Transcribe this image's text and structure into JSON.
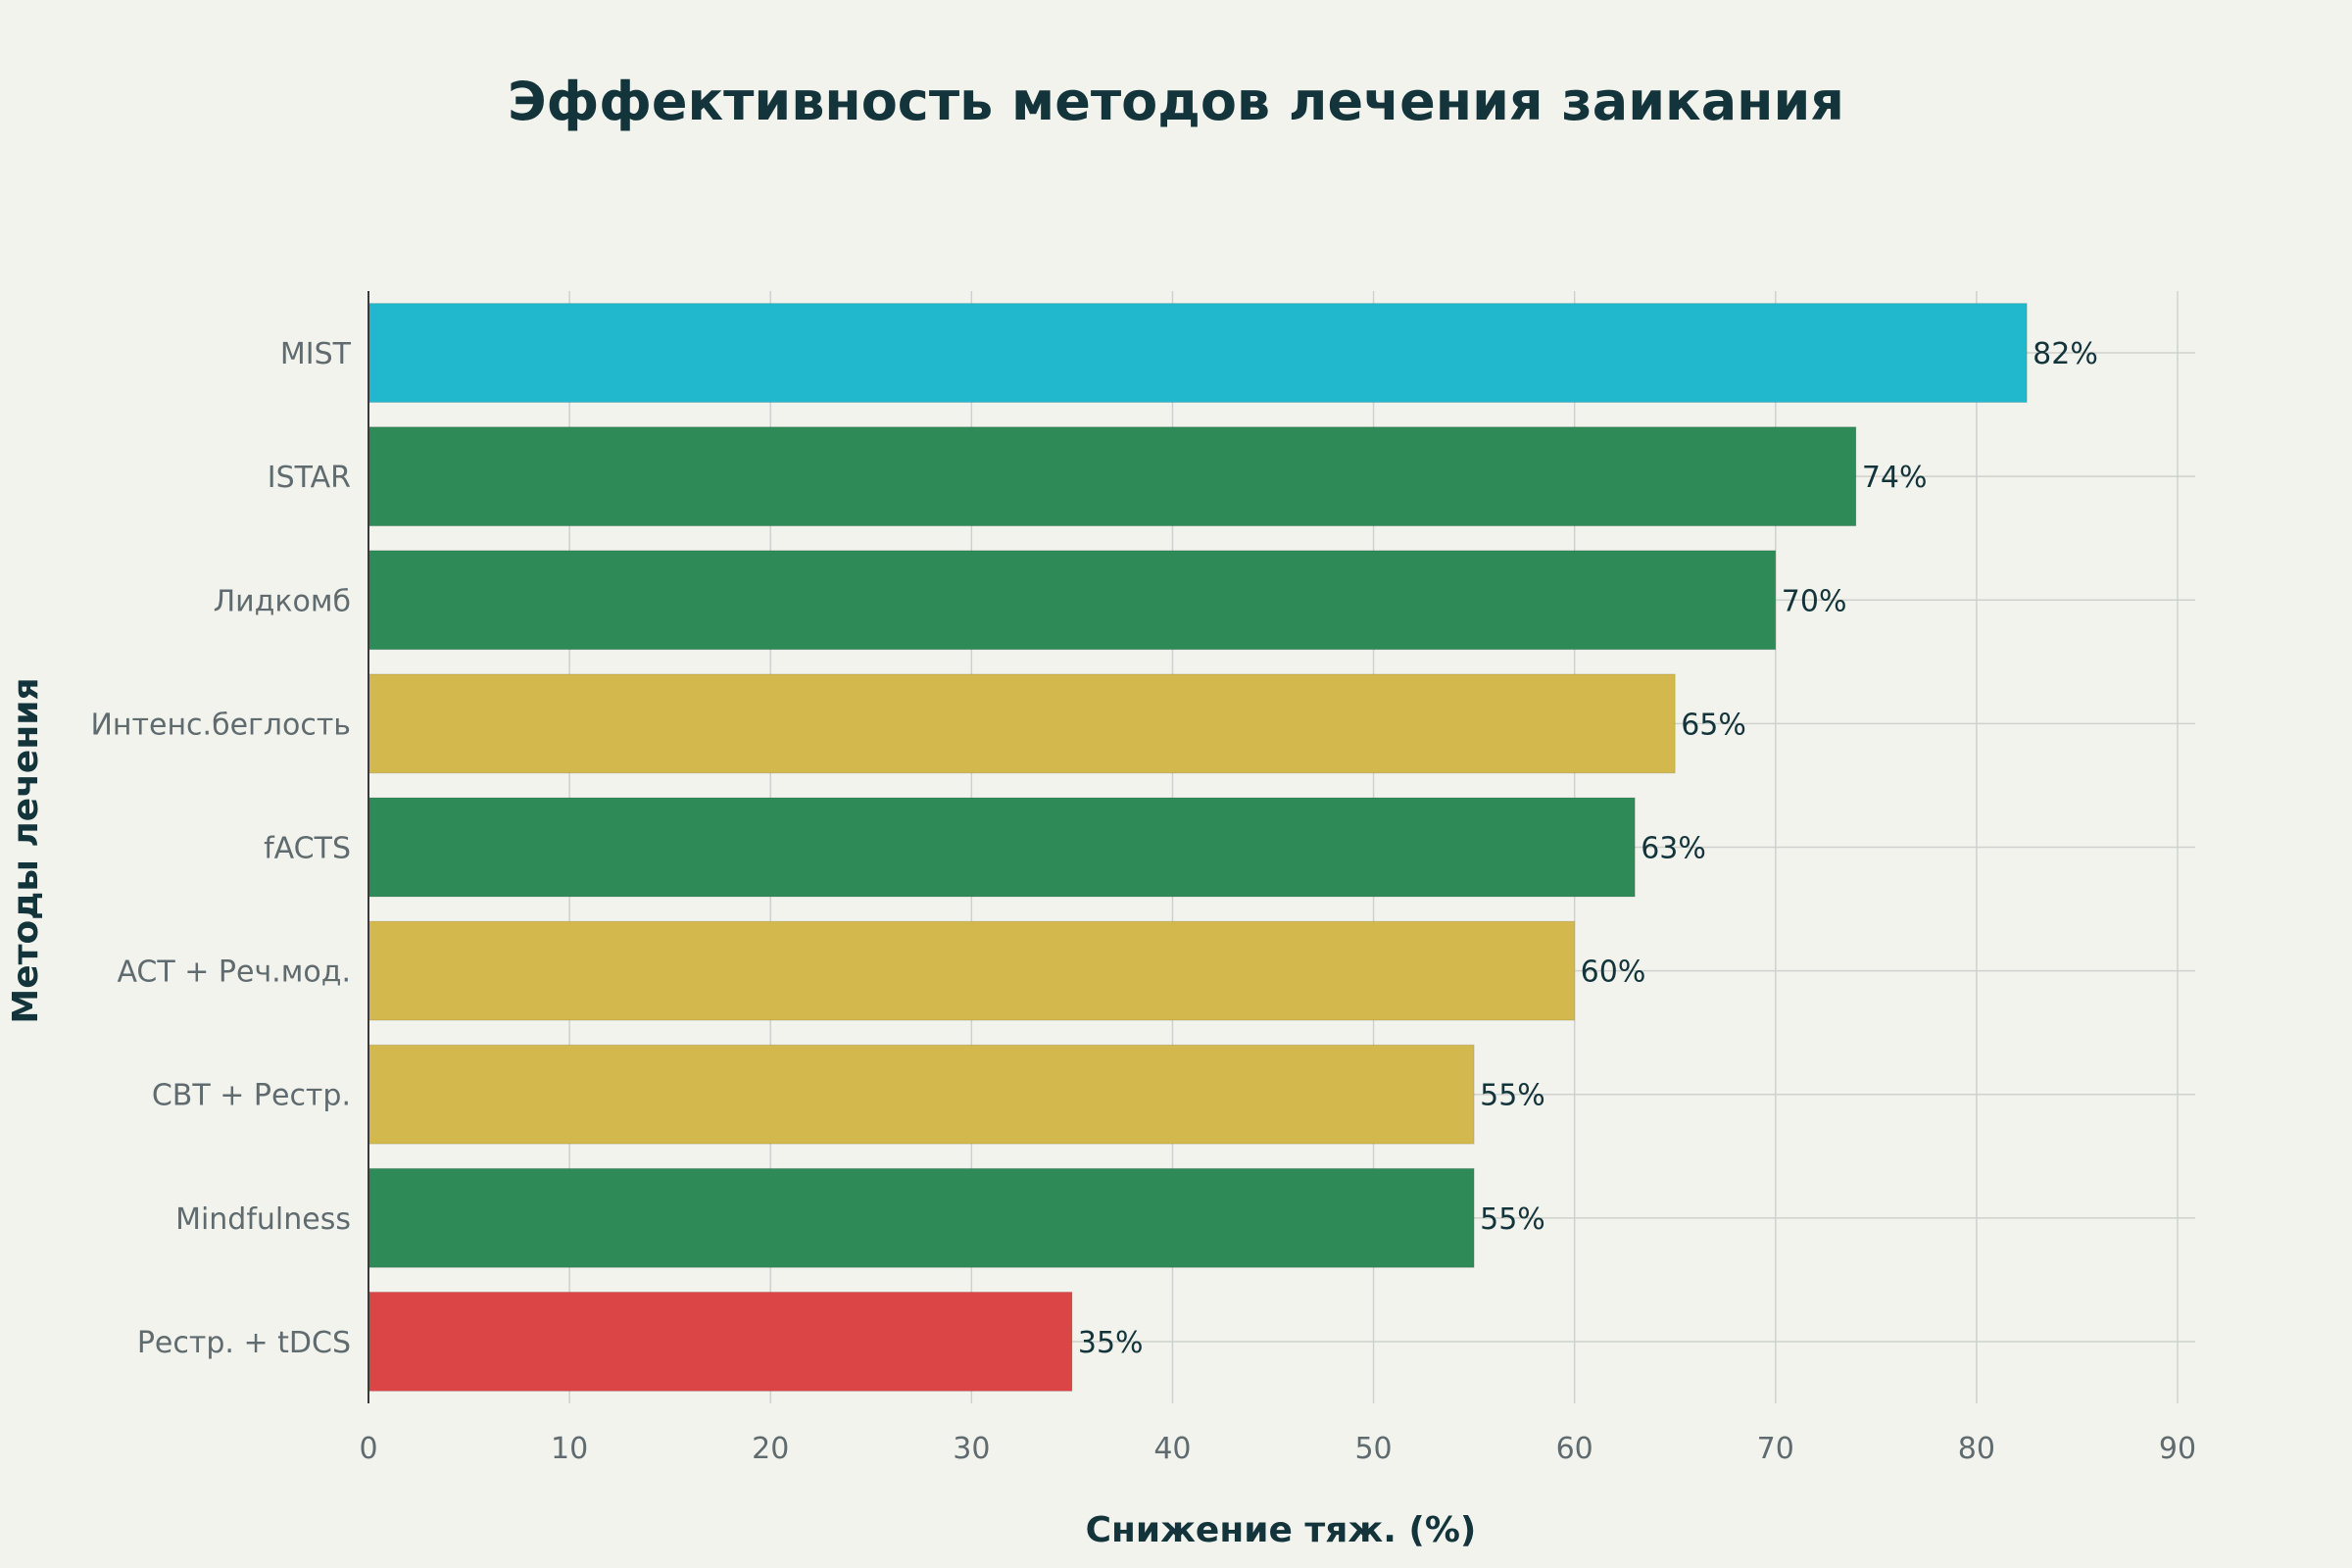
{
  "chart_data": {
    "type": "bar",
    "orientation": "horizontal",
    "title": "Эффективность методов лечения заикания",
    "xlabel": "Снижение тяж. (%)",
    "ylabel": "Методы лечения",
    "xlim": [
      0,
      90
    ],
    "xticks": [
      0,
      10,
      20,
      30,
      40,
      50,
      60,
      70,
      80,
      90
    ],
    "grid": true,
    "categories": [
      "MIST",
      "ISTAR",
      "Лидкомб",
      "Интенс.беглость",
      "fACTS",
      "ACT + Реч.мод.",
      "CBT + Рестр.",
      "Mindfulness",
      "Рестр. + tDCS"
    ],
    "values": [
      82.5,
      74,
      70,
      65,
      63,
      60,
      55,
      55,
      35
    ],
    "data_labels": [
      "82%",
      "74%",
      "70%",
      "65%",
      "63%",
      "60%",
      "55%",
      "55%",
      "35%"
    ],
    "colors": [
      "#21b8cd",
      "#2e8b57",
      "#2e8b57",
      "#d3b94d",
      "#2e8b57",
      "#d3b94d",
      "#d3b94d",
      "#2e8b57",
      "#db4545"
    ]
  }
}
